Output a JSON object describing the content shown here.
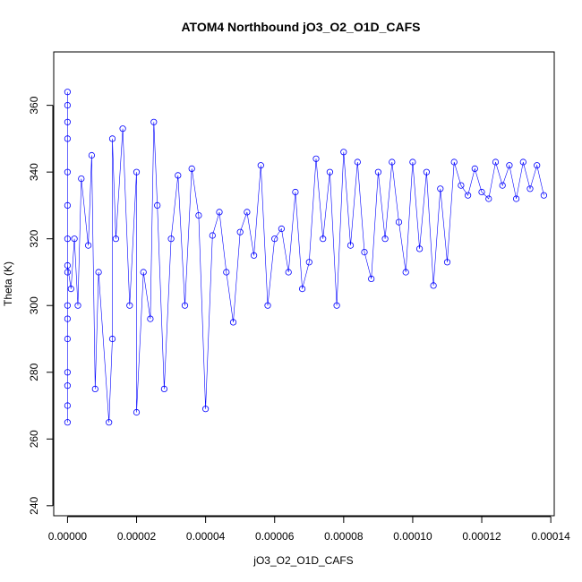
{
  "chart_data": {
    "type": "scatter",
    "title": "ATOM4 Northbound jO3_O2_O1D_CAFS",
    "xlabel": "jO3_O2_O1D_CAFS",
    "ylabel": "Theta (K)",
    "xlim": [
      -4e-06,
      0.000141
    ],
    "ylim": [
      237,
      376
    ],
    "xticks": [
      0.0,
      2e-05,
      4e-05,
      6e-05,
      8e-05,
      0.0001,
      0.00012,
      0.00014
    ],
    "xtick_labels": [
      "0.00000",
      "0.00002",
      "0.00004",
      "0.00006",
      "0.00008",
      "0.00010",
      "0.00012",
      "0.00014"
    ],
    "yticks": [
      240,
      260,
      280,
      300,
      320,
      340,
      360
    ],
    "ytick_labels": [
      "240",
      "260",
      "280",
      "300",
      "320",
      "340",
      "360"
    ],
    "grid": false,
    "series_color": "#0000ff",
    "marker": "open-circle",
    "series": [
      {
        "x": [
          0.0,
          0.0,
          0.0,
          0.0,
          0.0,
          0.0,
          0.0,
          0.0,
          0.0,
          0.0,
          0.0,
          0.0,
          0.0,
          0.0,
          0.0,
          0.0,
          1e-06,
          2e-06,
          3e-06,
          4e-06,
          6e-06,
          7e-06,
          8e-06,
          9e-06,
          1.2e-05,
          1.3e-05,
          1.3e-05,
          1.4e-05,
          1.6e-05,
          1.8e-05,
          2e-05,
          2e-05,
          2.2e-05,
          2.4e-05,
          2.5e-05,
          2.6e-05,
          2.8e-05,
          3e-05,
          3.2e-05,
          3.4e-05,
          3.6e-05,
          3.8e-05,
          4e-05,
          4.2e-05,
          4.4e-05,
          4.6e-05,
          4.8e-05,
          5e-05,
          5.2e-05,
          5.4e-05,
          5.6e-05,
          5.8e-05,
          6e-05,
          6.2e-05,
          6.4e-05,
          6.6e-05,
          6.8e-05,
          7e-05,
          7.2e-05,
          7.4e-05,
          7.6e-05,
          7.8e-05,
          8e-05,
          8.2e-05,
          8.4e-05,
          8.6e-05,
          8.8e-05,
          9e-05,
          9.2e-05,
          9.4e-05,
          9.6e-05,
          9.8e-05,
          0.0001,
          0.000102,
          0.000104,
          0.000106,
          0.000108,
          0.00011,
          0.000112,
          0.000114,
          0.000116,
          0.000118,
          0.00012,
          0.000122,
          0.000124,
          0.000126,
          0.000128,
          0.00013,
          0.000132,
          0.000134,
          0.000136,
          0.000138
        ],
        "y": [
          265,
          270,
          280,
          290,
          300,
          310,
          320,
          330,
          340,
          350,
          355,
          360,
          364,
          296,
          276,
          312,
          305,
          320,
          300,
          338,
          318,
          345,
          275,
          310,
          265,
          290,
          350,
          320,
          353,
          300,
          340,
          268,
          310,
          296,
          355,
          330,
          275,
          320,
          339,
          300,
          341,
          327,
          269,
          321,
          328,
          310,
          295,
          322,
          328,
          315,
          342,
          300,
          320,
          323,
          310,
          334,
          305,
          313,
          344,
          320,
          340,
          300,
          346,
          318,
          343,
          316,
          308,
          340,
          320,
          343,
          325,
          310,
          343,
          317,
          340,
          306,
          335,
          313,
          343,
          336,
          333,
          341,
          334,
          332,
          343,
          336,
          342,
          332,
          343,
          335,
          342,
          333
        ]
      }
    ]
  }
}
